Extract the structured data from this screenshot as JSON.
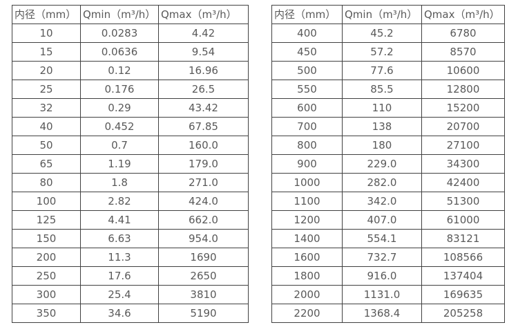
{
  "colors": {
    "border": "#404040",
    "text": "#595959",
    "background": "#ffffff"
  },
  "tables": [
    {
      "name": "flow-table-small-diameters",
      "headers": [
        "内径（mm）",
        "Qmin（m³/h）",
        "Qmax（m³/h）"
      ],
      "rows": [
        [
          "10",
          "0.0283",
          "4.42"
        ],
        [
          "15",
          "0.0636",
          "9.54"
        ],
        [
          "20",
          "0.12",
          "16.96"
        ],
        [
          "25",
          "0.176",
          "26.5"
        ],
        [
          "32",
          "0.29",
          "43.42"
        ],
        [
          "40",
          "0.452",
          "67.85"
        ],
        [
          "50",
          "0.7",
          "160.0"
        ],
        [
          "65",
          "1.19",
          "179.0"
        ],
        [
          "80",
          "1.8",
          "271.0"
        ],
        [
          "100",
          "2.82",
          "424.0"
        ],
        [
          "125",
          "4.41",
          "662.0"
        ],
        [
          "150",
          "6.63",
          "954.0"
        ],
        [
          "200",
          "11.3",
          "1690"
        ],
        [
          "250",
          "17.6",
          "2650"
        ],
        [
          "300",
          "25.4",
          "3810"
        ],
        [
          "350",
          "34.6",
          "5190"
        ]
      ]
    },
    {
      "name": "flow-table-large-diameters",
      "headers": [
        "内径（mm）",
        "Qmin（m³/h）",
        "Qmax（m³/h）"
      ],
      "rows": [
        [
          "400",
          "45.2",
          "6780"
        ],
        [
          "450",
          "57.2",
          "8570"
        ],
        [
          "500",
          "77.6",
          "10600"
        ],
        [
          "550",
          "85.5",
          "12800"
        ],
        [
          "600",
          "110",
          "15200"
        ],
        [
          "700",
          "138",
          "20700"
        ],
        [
          "800",
          "180",
          "27100"
        ],
        [
          "900",
          "229.0",
          "34300"
        ],
        [
          "1000",
          "282.0",
          "42400"
        ],
        [
          "1100",
          "342.0",
          "51300"
        ],
        [
          "1200",
          "407.0",
          "61000"
        ],
        [
          "1400",
          "554.1",
          "83121"
        ],
        [
          "1600",
          "732.7",
          "108566"
        ],
        [
          "1800",
          "916.0",
          "137404"
        ],
        [
          "2000",
          "1131.0",
          "169635"
        ],
        [
          "2200",
          "1368.4",
          "205258"
        ]
      ]
    }
  ]
}
